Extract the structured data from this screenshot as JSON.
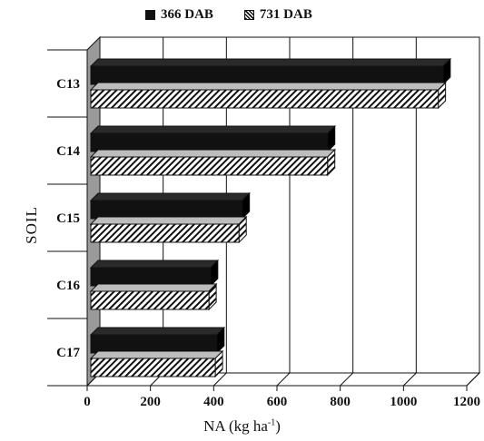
{
  "chart_data": {
    "type": "bar",
    "orientation": "horizontal",
    "style": "3d",
    "categories": [
      "C13",
      "C14",
      "C15",
      "C16",
      "C17"
    ],
    "series": [
      {
        "name": "366 DAB",
        "values": [
          1125,
          760,
          490,
          390,
          410
        ],
        "pattern": "solid",
        "color": "#111111"
      },
      {
        "name": "731 DAB",
        "values": [
          1110,
          760,
          480,
          385,
          405
        ],
        "pattern": "diagonal-hatch",
        "color": "#111111"
      }
    ],
    "xlabel_text": "NA (kg ha",
    "xlabel_sup": "-1",
    "xlabel_close": ")",
    "ylabel": "SOIL",
    "xlim": [
      0,
      1200
    ],
    "xticks": [
      0,
      200,
      400,
      600,
      800,
      1000,
      1200
    ],
    "grid": "vertical",
    "legend_position": "top"
  }
}
